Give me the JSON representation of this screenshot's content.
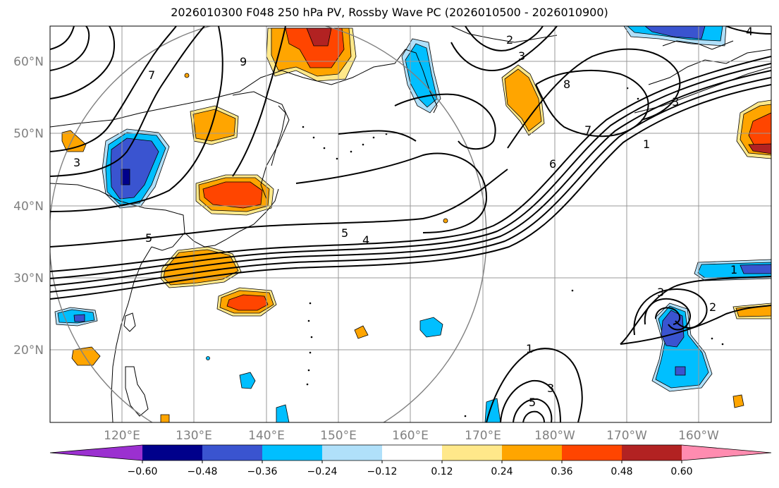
{
  "title": "2026010300 F048 250 hPa PV, Rossby Wave PC (2026010500 - 2026010900)",
  "lat_labels": [
    "60°N",
    "50°N",
    "40°N",
    "30°N",
    "20°N"
  ],
  "lon_labels": [
    "120°E",
    "130°E",
    "140°E",
    "150°E",
    "160°E",
    "170°E",
    "180°W",
    "170°W",
    "160°W"
  ],
  "contour_labels": [
    "9",
    "7",
    "3",
    "5",
    "5",
    "4",
    "6",
    "7",
    "8",
    "3",
    "2",
    "4",
    "3",
    "1",
    "3",
    "2",
    "1",
    "1",
    "3",
    "5"
  ],
  "colorbar": {
    "ticks": [
      "−0.60",
      "−0.48",
      "−0.36",
      "−0.24",
      "−0.12",
      "0.12",
      "0.24",
      "0.36",
      "0.48",
      "0.60"
    ],
    "colors": [
      "#9b30d0",
      "#00008b",
      "#3a54d0",
      "#00bfff",
      "#b0e0fa",
      "#ffffff",
      "#ffe88a",
      "#ffa500",
      "#ff4500",
      "#b22222",
      "#ff8cb0",
      "#ff8cb0"
    ]
  }
}
